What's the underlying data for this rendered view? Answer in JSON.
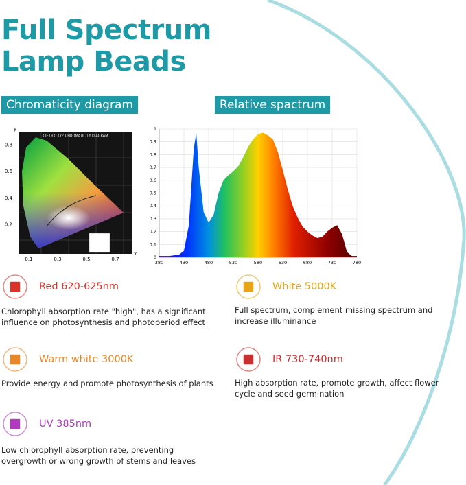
{
  "header": {
    "title_lines": [
      "Full Spectrum",
      "Lamp Beads"
    ]
  },
  "chromaticity": {
    "label": "Chromaticity diagram",
    "diagram_title": "CIE1931XYZ CHROMATICITY DIAGRAM",
    "x_label": "x",
    "y_label": "y",
    "xticks": [
      0.1,
      0.3,
      0.5,
      0.7
    ],
    "yticks": [
      0.2,
      0.4,
      0.6,
      0.8
    ]
  },
  "chart_data": {
    "type": "area",
    "label": "Relative spactrum",
    "x": [
      380,
      400,
      420,
      430,
      440,
      450,
      455,
      460,
      470,
      480,
      490,
      500,
      510,
      520,
      530,
      540,
      550,
      560,
      570,
      580,
      590,
      600,
      610,
      620,
      630,
      640,
      650,
      660,
      670,
      680,
      690,
      700,
      710,
      720,
      730,
      740,
      750,
      760,
      770,
      780
    ],
    "values": [
      0.01,
      0.01,
      0.02,
      0.05,
      0.25,
      0.85,
      0.97,
      0.7,
      0.35,
      0.27,
      0.33,
      0.5,
      0.6,
      0.64,
      0.67,
      0.71,
      0.78,
      0.86,
      0.92,
      0.96,
      0.97,
      0.95,
      0.92,
      0.82,
      0.68,
      0.53,
      0.4,
      0.31,
      0.24,
      0.2,
      0.17,
      0.15,
      0.16,
      0.2,
      0.23,
      0.25,
      0.18,
      0.04,
      0.01,
      0.01
    ],
    "xlim": [
      380,
      780
    ],
    "ylim": [
      0,
      1
    ],
    "xticks": [
      380,
      430,
      480,
      530,
      580,
      630,
      680,
      730,
      780
    ],
    "yticks": [
      0,
      0.1,
      0.2,
      0.3,
      0.4,
      0.5,
      0.6,
      0.7,
      0.8,
      0.9,
      1
    ],
    "grid": true
  },
  "beads": [
    {
      "name": "Red 620-625nm",
      "color": "#d9342b",
      "description": "Chlorophyll absorption rate \"high\", has a significant influence on photosynthesis and photoperiod effect"
    },
    {
      "name": "White 5000K",
      "color": "#e8a317",
      "description": "Full spectrum, complement missing spectrum and increase illuminance"
    },
    {
      "name": "Warm white 3000K",
      "color": "#e8862a",
      "description": "Provide energy and promote photosynthesis of plants"
    },
    {
      "name": "IR 730-740nm",
      "color": "#c8302f",
      "description": "High absorption rate, promote growth, affect flower cycle and seed germination"
    },
    {
      "name": "UV 385nm",
      "color": "#b23ac0",
      "description": "Low chlorophyll absorption rate, preventing overgrowth or wrong growth of stems and leaves"
    }
  ]
}
